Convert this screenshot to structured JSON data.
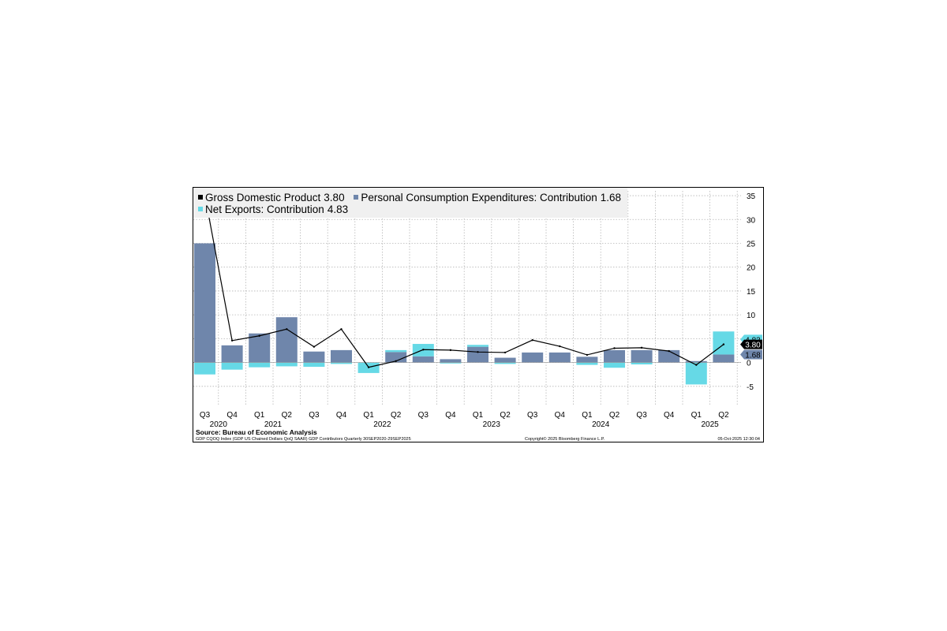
{
  "legend": {
    "gdp": {
      "label": "Gross Domestic Product",
      "value": "3.80",
      "color": "#000000"
    },
    "pce": {
      "label": "Personal Consumption Expenditures: Contribution",
      "value": "1.68",
      "color": "#6f86ab"
    },
    "nx": {
      "label": "Net Exports: Contribution",
      "value": "4.83",
      "color": "#66d9e6"
    }
  },
  "footer": {
    "source": "Source: Bureau of Economic Analysis",
    "note": "GDP CQOQ Index (GDP US Chained Dollars QoQ SAAR) GDP Contributors Quarterly 30SEP2020-29SEP2025",
    "copyright": "Copyright© 2025 Bloomberg Finance L.P.",
    "timestamp": "05-Oct-2025 12:30:04"
  },
  "chart_data": {
    "type": "bar",
    "categories": [
      "Q3",
      "Q4",
      "Q1",
      "Q2",
      "Q3",
      "Q4",
      "Q1",
      "Q2",
      "Q3",
      "Q4",
      "Q1",
      "Q2",
      "Q3",
      "Q4",
      "Q1",
      "Q2",
      "Q3",
      "Q4",
      "Q1",
      "Q2"
    ],
    "years": [
      {
        "label": "2020",
        "start_index": 0
      },
      {
        "label": "2021",
        "start_index": 2
      },
      {
        "label": "2022",
        "start_index": 6
      },
      {
        "label": "2023",
        "start_index": 10
      },
      {
        "label": "2024",
        "start_index": 14
      },
      {
        "label": "2025",
        "start_index": 18
      }
    ],
    "series": [
      {
        "name": "Personal Consumption Expenditures: Contribution",
        "kind": "bar",
        "color": "#6f86ab",
        "values": [
          25.0,
          3.6,
          6.1,
          9.5,
          2.3,
          2.6,
          0.0,
          2.2,
          1.3,
          0.7,
          3.3,
          1.0,
          2.1,
          2.1,
          1.2,
          2.6,
          2.6,
          2.6,
          0.3,
          1.68
        ]
      },
      {
        "name": "Net Exports: Contribution",
        "kind": "bar",
        "color": "#66d9e6",
        "values": [
          -2.5,
          -1.5,
          -1.0,
          -0.8,
          -0.9,
          -0.3,
          -2.2,
          0.4,
          2.6,
          -0.2,
          0.4,
          -0.3,
          0.0,
          0.0,
          -0.5,
          -1.1,
          -0.4,
          0.0,
          -4.6,
          4.83
        ]
      },
      {
        "name": "Gross Domestic Product",
        "kind": "line",
        "color": "#000000",
        "values": [
          35.2,
          4.6,
          5.6,
          7.0,
          3.3,
          7.0,
          -1.0,
          0.3,
          2.7,
          2.6,
          2.2,
          2.1,
          4.7,
          3.4,
          1.6,
          3.0,
          3.1,
          2.4,
          -0.5,
          3.8
        ]
      }
    ],
    "value_labels": [
      {
        "text": "4.83",
        "value": 4.83,
        "color": "#66d9e6",
        "text_color": "#000000"
      },
      {
        "text": "3.80",
        "value": 3.8,
        "color": "#000000",
        "text_color": "#ffffff"
      },
      {
        "text": "1.68",
        "value": 1.68,
        "color": "#6f86ab",
        "text_color": "#000000"
      }
    ],
    "yticks": [
      -5,
      0,
      5,
      10,
      15,
      20,
      25,
      30,
      35
    ],
    "ylim": [
      -9,
      36
    ],
    "grid": true,
    "legend_position": "top-left"
  }
}
